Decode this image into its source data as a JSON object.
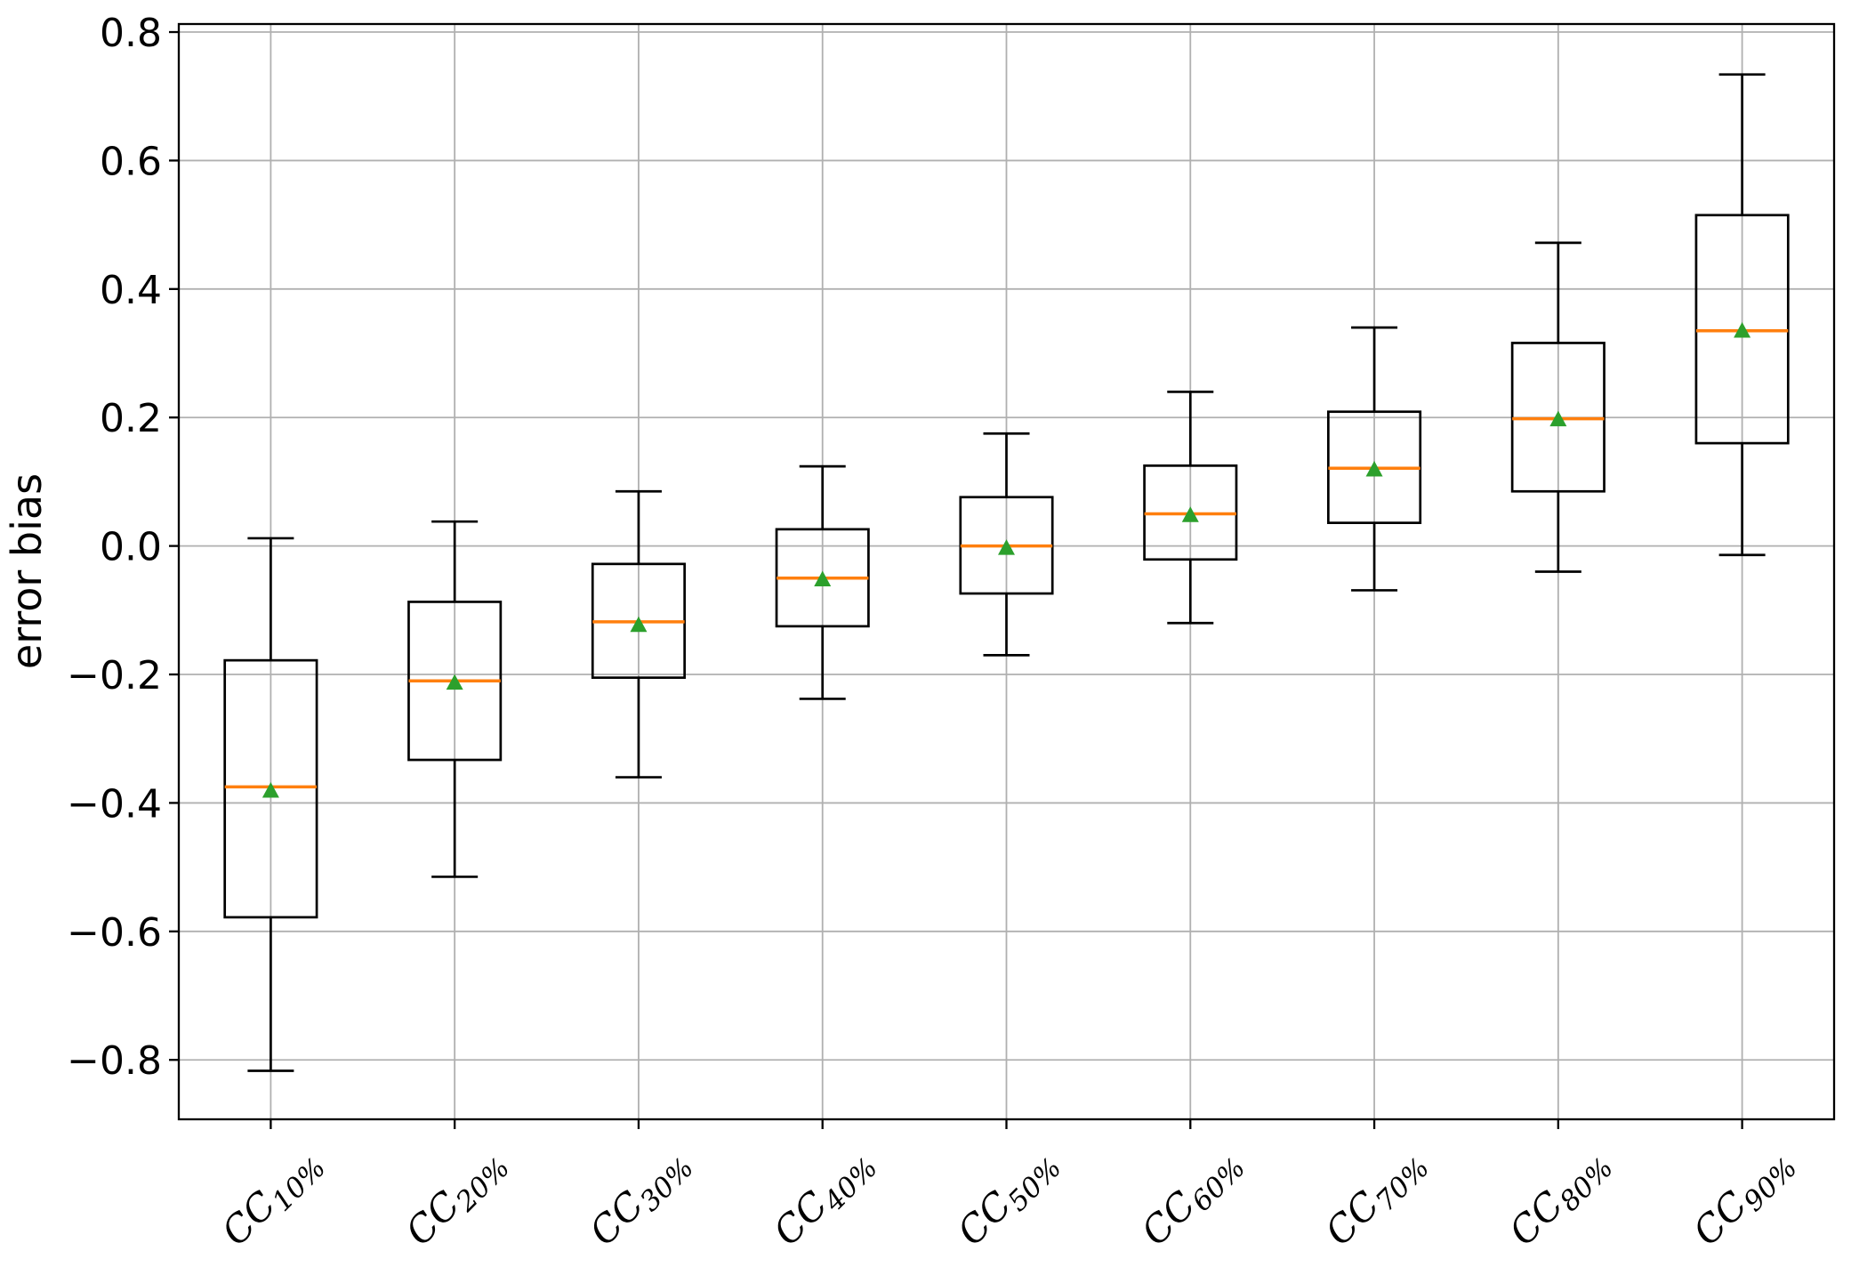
{
  "figure": {
    "background": "#ffffff"
  },
  "chart_data": {
    "type": "box",
    "title": "",
    "xlabel": "",
    "ylabel": "error bias",
    "grid": true,
    "grid_color": "#b0b0b0",
    "legend": "none",
    "ylim": [
      -0.8925,
      0.8125
    ],
    "yticks": [
      0.8,
      0.6,
      0.4,
      0.2,
      0.0,
      -0.2,
      -0.4,
      -0.6,
      -0.8
    ],
    "ytick_labels": [
      "0.8",
      "0.6",
      "0.4",
      "0.2",
      "0.0",
      "−0.2",
      "−0.4",
      "−0.6",
      "−0.8"
    ],
    "categories": [
      {
        "label": "CC10%",
        "base": "CC",
        "sub": "10%"
      },
      {
        "label": "CC20%",
        "base": "CC",
        "sub": "20%"
      },
      {
        "label": "CC30%",
        "base": "CC",
        "sub": "30%"
      },
      {
        "label": "CC40%",
        "base": "CC",
        "sub": "40%"
      },
      {
        "label": "CC50%",
        "base": "CC",
        "sub": "50%"
      },
      {
        "label": "CC60%",
        "base": "CC",
        "sub": "60%"
      },
      {
        "label": "CC70%",
        "base": "CC",
        "sub": "70%"
      },
      {
        "label": "CC80%",
        "base": "CC",
        "sub": "80%"
      },
      {
        "label": "CC90%",
        "base": "CC",
        "sub": "90%"
      }
    ],
    "series": [
      {
        "category": "CC10%",
        "whisker_low": -0.817,
        "q1": -0.578,
        "median": -0.375,
        "q3": -0.178,
        "whisker_high": 0.012,
        "mean": -0.38
      },
      {
        "category": "CC20%",
        "whisker_low": -0.515,
        "q1": -0.333,
        "median": -0.21,
        "q3": -0.087,
        "whisker_high": 0.038,
        "mean": -0.212
      },
      {
        "category": "CC30%",
        "whisker_low": -0.36,
        "q1": -0.205,
        "median": -0.118,
        "q3": -0.028,
        "whisker_high": 0.085,
        "mean": -0.122
      },
      {
        "category": "CC40%",
        "whisker_low": -0.238,
        "q1": -0.125,
        "median": -0.05,
        "q3": 0.026,
        "whisker_high": 0.124,
        "mean": -0.051
      },
      {
        "category": "CC50%",
        "whisker_low": -0.17,
        "q1": -0.074,
        "median": 0.0,
        "q3": 0.076,
        "whisker_high": 0.175,
        "mean": -0.002
      },
      {
        "category": "CC60%",
        "whisker_low": -0.12,
        "q1": -0.021,
        "median": 0.05,
        "q3": 0.125,
        "whisker_high": 0.24,
        "mean": 0.049
      },
      {
        "category": "CC70%",
        "whisker_low": -0.069,
        "q1": 0.036,
        "median": 0.121,
        "q3": 0.209,
        "whisker_high": 0.34,
        "mean": 0.12
      },
      {
        "category": "CC80%",
        "whisker_low": -0.04,
        "q1": 0.085,
        "median": 0.198,
        "q3": 0.316,
        "whisker_high": 0.472,
        "mean": 0.198
      },
      {
        "category": "CC90%",
        "whisker_low": -0.014,
        "q1": 0.16,
        "median": 0.335,
        "q3": 0.515,
        "whisker_high": 0.734,
        "mean": 0.336
      }
    ],
    "colors": {
      "box_edge": "#000000",
      "whisker": "#000000",
      "median": "#ff7f0e",
      "mean_marker": "#2ca02c",
      "grid": "#b0b0b0",
      "spine": "#000000",
      "background": "#ffffff"
    },
    "marker_shapes": {
      "mean": "triangle-up-icon"
    }
  }
}
